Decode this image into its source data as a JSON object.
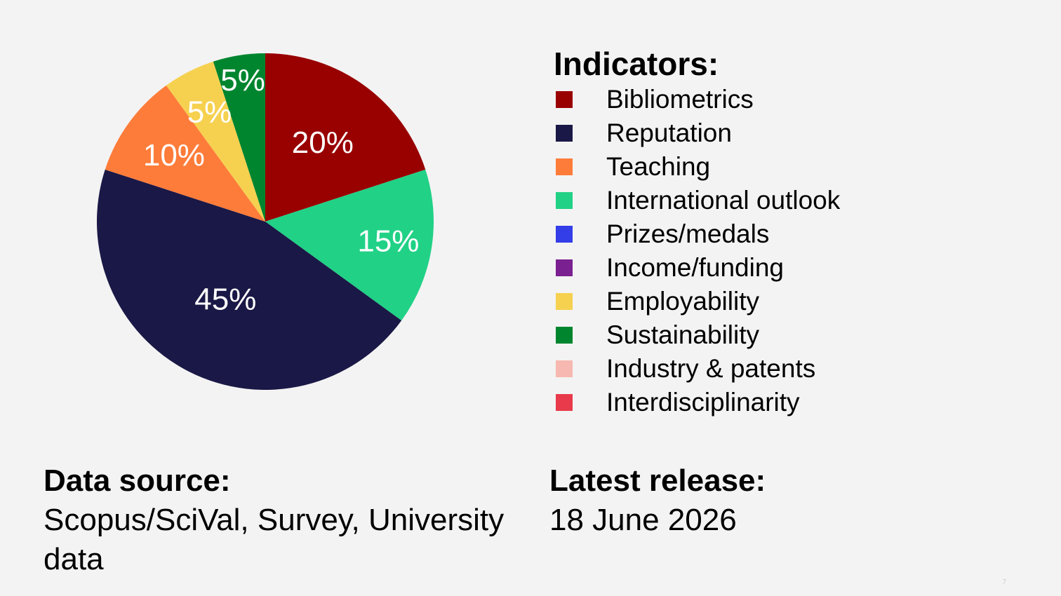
{
  "chart_data": {
    "type": "pie",
    "slices": [
      {
        "label": "Bibliometrics",
        "value": 20,
        "color": "#990000",
        "data_label": "20%"
      },
      {
        "label": "International outlook",
        "value": 15,
        "color": "#21d186",
        "data_label": "15%"
      },
      {
        "label": "Reputation",
        "value": 45,
        "color": "#1a1846",
        "data_label": "45%"
      },
      {
        "label": "Teaching",
        "value": 10,
        "color": "#fe7c3a",
        "data_label": "10%"
      },
      {
        "label": "Employability",
        "value": 5,
        "color": "#f6d150",
        "data_label": "5%"
      },
      {
        "label": "Sustainability",
        "value": 5,
        "color": "#00852f",
        "data_label": "5%"
      }
    ],
    "start_angle": "12 o'clock",
    "direction": "clockwise",
    "legend_position": "right"
  },
  "legend": {
    "title": "Indicators:",
    "items": [
      {
        "label": "Bibliometrics",
        "color": "#990000"
      },
      {
        "label": "Reputation",
        "color": "#1a1846"
      },
      {
        "label": "Teaching",
        "color": "#fe7c3a"
      },
      {
        "label": "International outlook",
        "color": "#21d186"
      },
      {
        "label": "Prizes/medals",
        "color": "#333de8"
      },
      {
        "label": "Income/funding",
        "color": "#7b2090"
      },
      {
        "label": "Employability",
        "color": "#f6d150"
      },
      {
        "label": "Sustainability",
        "color": "#00852f"
      },
      {
        "label": "Industry & patents",
        "color": "#f6b8b0"
      },
      {
        "label": "Interdisciplinarity",
        "color": "#e83a4a"
      }
    ]
  },
  "source": {
    "title": "Data source:",
    "text": "Scopus/SciVal, Survey, University data"
  },
  "release": {
    "title": "Latest release:",
    "text": "18 June 2026"
  },
  "page_number": "7"
}
